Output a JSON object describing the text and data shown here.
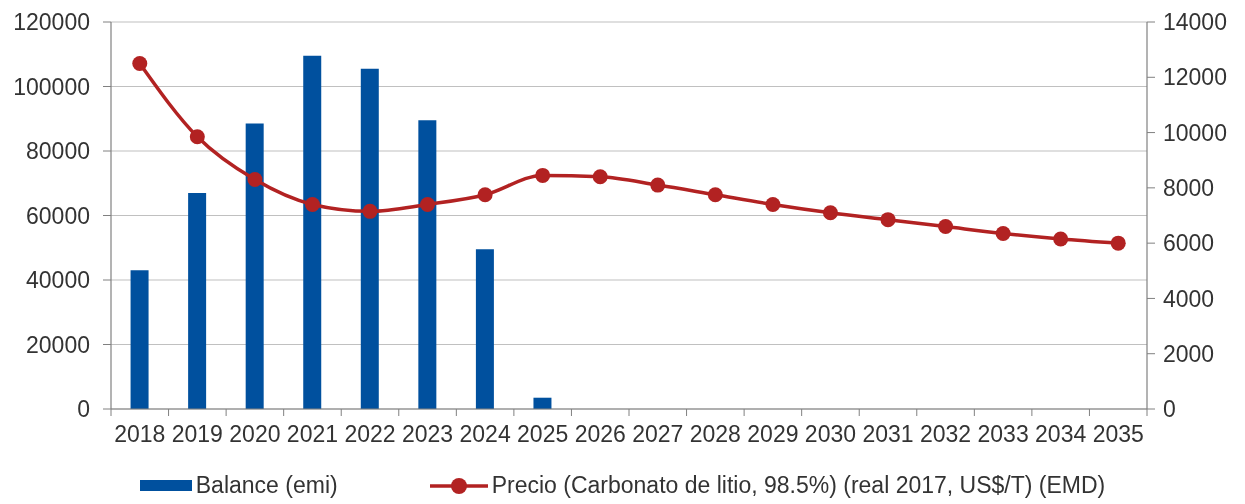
{
  "chart_data": {
    "type": "bar",
    "categories": [
      "2018",
      "2019",
      "2020",
      "2021",
      "2022",
      "2023",
      "2024",
      "2025",
      "2026",
      "2027",
      "2028",
      "2029",
      "2030",
      "2031",
      "2032",
      "2033",
      "2034",
      "2035"
    ],
    "series": [
      {
        "name": "Balance (emi)",
        "color": "#00509e",
        "values": [
          43000,
          67000,
          88500,
          109500,
          105500,
          89500,
          49500,
          3500,
          null,
          null,
          null,
          null,
          null,
          null,
          null,
          null,
          null,
          null
        ]
      },
      {
        "name": "Precio (Carbonato de litio, 98.5%) (real 2017, US$/T) (EMD)",
        "type": "line",
        "axis": "y2",
        "color": "#b22222",
        "values": [
          12500,
          9850,
          8300,
          7400,
          7150,
          7400,
          7750,
          8450,
          8400,
          8100,
          7750,
          7400,
          7100,
          6850,
          6600,
          6350,
          6150,
          6000
        ]
      }
    ],
    "ylim": [
      0,
      120000
    ],
    "yticks": [
      0,
      20000,
      40000,
      60000,
      80000,
      100000,
      120000
    ],
    "y2lim": [
      0,
      14000
    ],
    "y2ticks": [
      0,
      2000,
      4000,
      6000,
      8000,
      10000,
      12000,
      14000
    ],
    "grid": "y",
    "legend": "bottom",
    "marker": "circle",
    "line_style": "solid"
  }
}
